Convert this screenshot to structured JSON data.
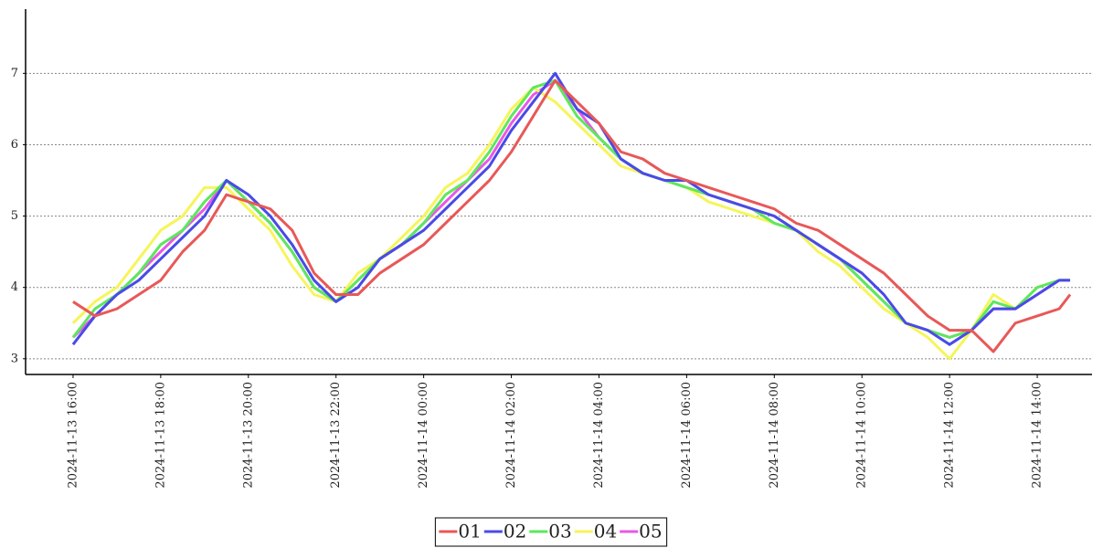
{
  "chart_data": {
    "type": "line",
    "x": [
      "2024-11-13 16:00",
      "2024-11-13 16:30",
      "2024-11-13 17:00",
      "2024-11-13 17:30",
      "2024-11-13 18:00",
      "2024-11-13 18:30",
      "2024-11-13 19:00",
      "2024-11-13 19:30",
      "2024-11-13 20:00",
      "2024-11-13 20:30",
      "2024-11-13 21:00",
      "2024-11-13 21:30",
      "2024-11-13 22:00",
      "2024-11-13 22:30",
      "2024-11-13 23:00",
      "2024-11-13 23:30",
      "2024-11-14 00:00",
      "2024-11-14 00:30",
      "2024-11-14 01:00",
      "2024-11-14 01:30",
      "2024-11-14 02:00",
      "2024-11-14 02:30",
      "2024-11-14 03:00",
      "2024-11-14 03:30",
      "2024-11-14 04:00",
      "2024-11-14 04:30",
      "2024-11-14 05:00",
      "2024-11-14 05:30",
      "2024-11-14 06:00",
      "2024-11-14 06:30",
      "2024-11-14 07:00",
      "2024-11-14 07:30",
      "2024-11-14 08:00",
      "2024-11-14 08:30",
      "2024-11-14 09:00",
      "2024-11-14 09:30",
      "2024-11-14 10:00",
      "2024-11-14 10:30",
      "2024-11-14 11:00",
      "2024-11-14 11:30",
      "2024-11-14 12:00",
      "2024-11-14 12:30",
      "2024-11-14 13:00",
      "2024-11-14 13:30",
      "2024-11-14 14:00",
      "2024-11-14 14:30",
      "2024-11-14 14:45"
    ],
    "series": [
      {
        "name": "01",
        "color": "#e85858",
        "values": [
          3.8,
          3.6,
          3.7,
          3.9,
          4.1,
          4.5,
          4.8,
          5.3,
          5.2,
          5.1,
          4.8,
          4.2,
          3.9,
          3.9,
          4.2,
          4.4,
          4.6,
          4.9,
          5.2,
          5.5,
          5.9,
          6.4,
          6.9,
          6.6,
          6.3,
          5.9,
          5.8,
          5.6,
          5.5,
          5.4,
          5.3,
          5.2,
          5.1,
          4.9,
          4.8,
          4.6,
          4.4,
          4.2,
          3.9,
          3.6,
          3.4,
          3.4,
          3.1,
          3.5,
          3.6,
          3.7,
          3.9
        ]
      },
      {
        "name": "02",
        "color": "#4a4ae8",
        "values": [
          3.2,
          3.6,
          3.9,
          4.1,
          4.4,
          4.7,
          5.0,
          5.5,
          5.3,
          5.0,
          4.6,
          4.1,
          3.8,
          4.0,
          4.4,
          4.6,
          4.8,
          5.1,
          5.4,
          5.7,
          6.2,
          6.6,
          7.0,
          6.5,
          6.3,
          5.8,
          5.6,
          5.5,
          5.5,
          5.3,
          5.2,
          5.1,
          5.0,
          4.8,
          4.6,
          4.4,
          4.2,
          3.9,
          3.5,
          3.4,
          3.2,
          3.4,
          3.7,
          3.7,
          3.9,
          4.1,
          4.1
        ]
      },
      {
        "name": "03",
        "color": "#5ce85c",
        "values": [
          3.3,
          3.7,
          3.9,
          4.2,
          4.6,
          4.8,
          5.2,
          5.5,
          5.2,
          4.9,
          4.5,
          4.0,
          3.8,
          4.1,
          4.4,
          4.6,
          4.9,
          5.3,
          5.5,
          5.9,
          6.4,
          6.8,
          6.9,
          6.4,
          6.1,
          5.8,
          5.6,
          5.5,
          5.4,
          5.3,
          5.2,
          5.1,
          4.9,
          4.8,
          4.6,
          4.4,
          4.1,
          3.8,
          3.5,
          3.4,
          3.3,
          3.4,
          3.8,
          3.7,
          4.0,
          4.1,
          4.1
        ]
      },
      {
        "name": "04",
        "color": "#f5f55a",
        "values": [
          3.5,
          3.8,
          4.0,
          4.4,
          4.8,
          5.0,
          5.4,
          5.4,
          5.1,
          4.8,
          4.3,
          3.9,
          3.8,
          4.2,
          4.4,
          4.7,
          5.0,
          5.4,
          5.6,
          6.0,
          6.5,
          6.8,
          6.6,
          6.3,
          6.0,
          5.7,
          5.6,
          5.5,
          5.4,
          5.2,
          5.1,
          5.0,
          4.9,
          4.8,
          4.5,
          4.3,
          4.0,
          3.7,
          3.5,
          3.3,
          3.0,
          3.4,
          3.9,
          3.7,
          4.0,
          4.1,
          4.1
        ]
      },
      {
        "name": "05",
        "color": "#e858e8",
        "values": [
          3.3,
          3.6,
          3.9,
          4.2,
          4.5,
          4.8,
          5.1,
          5.5,
          5.2,
          4.9,
          4.5,
          4.0,
          3.8,
          4.1,
          4.4,
          4.6,
          4.9,
          5.2,
          5.5,
          5.8,
          6.3,
          6.7,
          6.9,
          6.5,
          6.1,
          5.8,
          5.6,
          5.5,
          5.4,
          5.3,
          5.2,
          5.1,
          4.9,
          4.8,
          4.6,
          4.4,
          4.1,
          3.8,
          3.5,
          3.4,
          3.3,
          3.4,
          3.7,
          3.7,
          3.9,
          4.1,
          4.1
        ]
      }
    ],
    "xlim": [
      "2024-11-13 14:55",
      "2024-11-14 15:15"
    ],
    "xticks": [
      "2024-11-13 16:00",
      "2024-11-13 18:00",
      "2024-11-13 20:00",
      "2024-11-13 22:00",
      "2024-11-14 00:00",
      "2024-11-14 02:00",
      "2024-11-14 04:00",
      "2024-11-14 06:00",
      "2024-11-14 08:00",
      "2024-11-14 10:00",
      "2024-11-14 12:00",
      "2024-11-14 14:00"
    ],
    "ylim": [
      2.78,
      7.9
    ],
    "yticks": [
      3,
      4,
      5,
      6,
      7
    ],
    "grid": true,
    "legend": "bottom"
  }
}
